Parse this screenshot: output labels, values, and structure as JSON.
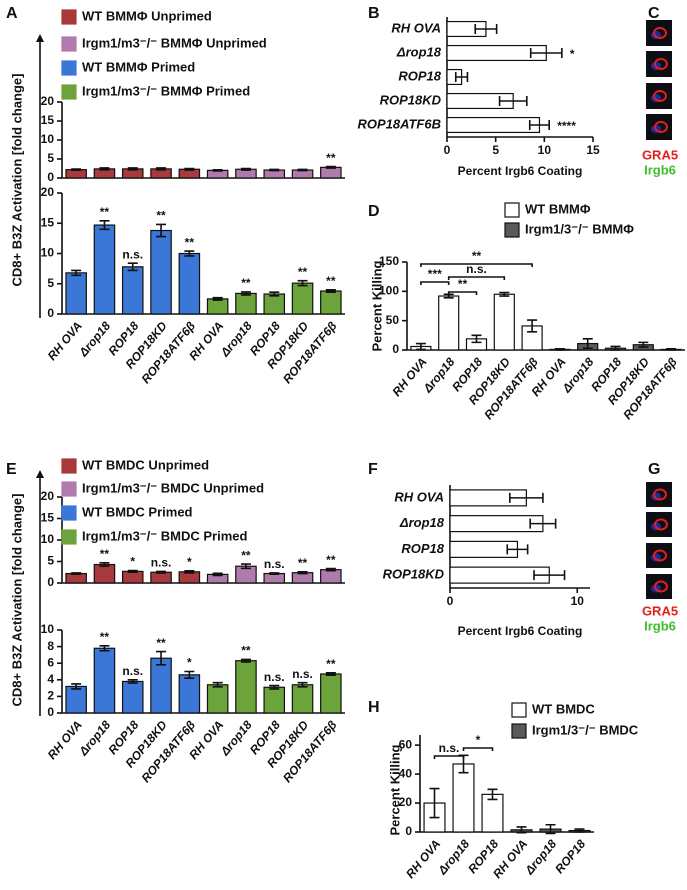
{
  "chart_data": [
    {
      "type": "bar",
      "panel": "A",
      "ylabel": "CD8+ B3Z Activation [fold change]",
      "categories": [
        "RH OVA",
        "Δrop18",
        "ROP18",
        "ROP18KD",
        "ROP18ATF6β",
        "RH OVA",
        "Δrop18",
        "ROP18",
        "ROP18KD",
        "ROP18ATF6β"
      ],
      "subplots": [
        {
          "ylim": [
            0,
            20
          ],
          "yticks": [
            0,
            5,
            10,
            15,
            20
          ],
          "series": [
            {
              "name": "WT BMMΦ Unprimed",
              "color": "#a8393c",
              "values": [
                2.2,
                2.4,
                2.4,
                2.4,
                2.3,
                null,
                null,
                null,
                null,
                null
              ],
              "errors": [
                0.15,
                0.25,
                0.25,
                0.25,
                0.2,
                null,
                null,
                null,
                null,
                null
              ],
              "annotations": [
                null,
                null,
                null,
                null,
                null,
                null,
                null,
                null,
                null,
                null
              ]
            },
            {
              "name": "Irgm1/m3⁻/⁻ BMMΦ  Unprimed",
              "color": "#b07aad",
              "values": [
                null,
                null,
                null,
                null,
                null,
                2.0,
                2.3,
                2.1,
                2.1,
                2.8
              ],
              "errors": [
                null,
                null,
                null,
                null,
                null,
                0.15,
                0.2,
                0.15,
                0.15,
                0.2
              ],
              "annotations": [
                null,
                null,
                null,
                null,
                null,
                null,
                null,
                null,
                null,
                "**"
              ]
            }
          ]
        },
        {
          "ylim": [
            0,
            20
          ],
          "yticks": [
            0,
            5,
            10,
            15,
            20
          ],
          "series": [
            {
              "name": "WT BMMΦ Primed",
              "color": "#3a77d6",
              "values": [
                6.8,
                14.7,
                7.8,
                13.8,
                10.0,
                null,
                null,
                null,
                null,
                null
              ],
              "errors": [
                0.4,
                0.7,
                0.6,
                1.0,
                0.4,
                null,
                null,
                null,
                null,
                null
              ],
              "annotations": [
                null,
                "**",
                "n.s.",
                "**",
                "**",
                null,
                null,
                null,
                null,
                null
              ]
            },
            {
              "name": "Irgm1/m3⁻/⁻ BMMΦ  Primed",
              "color": "#6ca33b",
              "values": [
                null,
                null,
                null,
                null,
                null,
                2.5,
                3.4,
                3.3,
                5.1,
                3.8
              ],
              "errors": [
                null,
                null,
                null,
                null,
                null,
                0.2,
                0.25,
                0.3,
                0.4,
                0.2
              ],
              "annotations": [
                null,
                null,
                null,
                null,
                null,
                null,
                "**",
                null,
                "**",
                "**"
              ]
            }
          ]
        }
      ]
    },
    {
      "type": "barh",
      "panel": "B",
      "xlabel": "Percent Irgb6 Coating",
      "color": "#ffffff",
      "categories": [
        "RH OVA",
        "Δrop18",
        "ROP18",
        "ROP18KD",
        "ROP18ATF6B"
      ],
      "values": [
        4,
        10.2,
        1.5,
        6.8,
        9.5
      ],
      "errors": [
        1.1,
        1.6,
        0.6,
        1.4,
        1.0
      ],
      "annotations": [
        null,
        "*",
        null,
        null,
        "****"
      ],
      "xlim": [
        0,
        15
      ],
      "xticks": [
        0,
        5,
        10,
        15
      ]
    },
    {
      "type": "bar",
      "panel": "D",
      "ylabel": "Percent Killing",
      "categories": [
        "RH OVA",
        "Δrop18",
        "ROP18",
        "ROP18KD",
        "ROP18ATF6β",
        "RH OVA",
        "Δrop18",
        "ROP18",
        "ROP18KD",
        "ROP18ATF6β"
      ],
      "ylim": [
        0,
        150
      ],
      "yticks": [
        0,
        50,
        100,
        150
      ],
      "series": [
        {
          "name": "WT BMMΦ",
          "color": "#ffffff",
          "values": [
            6,
            92,
            19,
            95,
            41,
            null,
            null,
            null,
            null,
            null
          ],
          "errors": [
            5,
            3,
            6,
            3,
            10,
            null,
            null,
            null,
            null,
            null
          ]
        },
        {
          "name": "Irgm1/3⁻/⁻ BMMΦ",
          "color": "#5a5a5a",
          "values": [
            null,
            null,
            null,
            null,
            null,
            1,
            11,
            3,
            9,
            1
          ],
          "errors": [
            null,
            null,
            null,
            null,
            null,
            1,
            8,
            3,
            4,
            1
          ]
        }
      ],
      "significance": [
        "**",
        "n.s.",
        "**",
        "***"
      ]
    },
    {
      "type": "bar",
      "panel": "E",
      "ylabel": "CD8+ B3Z Activation [fold change]",
      "categories": [
        "RH OVA",
        "Δrop18",
        "ROP18",
        "ROP18KD",
        "ROP18ATF6β",
        "RH OVA",
        "Δrop18",
        "ROP18",
        "ROP18KD",
        "ROP18ATF6β"
      ],
      "subplots": [
        {
          "ylim": [
            0,
            20
          ],
          "yticks": [
            0,
            5,
            10,
            15,
            20
          ],
          "series": [
            {
              "name": "WT BMDC Unprimed",
              "color": "#a8393c",
              "values": [
                2.2,
                4.3,
                2.7,
                2.5,
                2.6,
                null,
                null,
                null,
                null,
                null
              ],
              "errors": [
                0.15,
                0.4,
                0.2,
                0.2,
                0.25,
                null,
                null,
                null,
                null,
                null
              ],
              "annotations": [
                null,
                "**",
                "*",
                "n.s.",
                "*",
                null,
                null,
                null,
                null,
                null
              ]
            },
            {
              "name": "Irgm1/m3⁻/⁻ BMDC  Unprimed",
              "color": "#b07aad",
              "values": [
                null,
                null,
                null,
                null,
                null,
                2.0,
                3.9,
                2.2,
                2.4,
                3.1
              ],
              "errors": [
                null,
                null,
                null,
                null,
                null,
                0.25,
                0.5,
                0.15,
                0.2,
                0.25
              ],
              "annotations": [
                null,
                null,
                null,
                null,
                null,
                null,
                "**",
                "n.s.",
                "**",
                "**"
              ]
            }
          ]
        },
        {
          "ylim": [
            0,
            10
          ],
          "yticks": [
            0,
            2,
            4,
            6,
            8,
            10
          ],
          "series": [
            {
              "name": "WT BMDC Primed",
              "color": "#3a77d6",
              "values": [
                3.2,
                7.8,
                3.8,
                6.6,
                4.6,
                null,
                null,
                null,
                null,
                null
              ],
              "errors": [
                0.3,
                0.3,
                0.2,
                0.8,
                0.4,
                null,
                null,
                null,
                null,
                null
              ],
              "annotations": [
                null,
                "**",
                "n.s.",
                "**",
                "*",
                null,
                null,
                null,
                null,
                null
              ]
            },
            {
              "name": "Irgm1/m3⁻/⁻ BMDC  Primed",
              "color": "#6ca33b",
              "values": [
                null,
                null,
                null,
                null,
                null,
                3.4,
                6.3,
                3.1,
                3.4,
                4.7
              ],
              "errors": [
                null,
                null,
                null,
                null,
                null,
                0.25,
                0.15,
                0.2,
                0.25,
                0.15
              ],
              "annotations": [
                null,
                null,
                null,
                null,
                null,
                null,
                "**",
                "n.s.",
                "n.s.",
                "**"
              ]
            }
          ]
        }
      ]
    },
    {
      "type": "barh",
      "panel": "F",
      "xlabel": "Percent Irgb6 Coating",
      "color": "#ffffff",
      "categories": [
        "RH OVA",
        "Δrop18",
        "ROP18",
        "ROP18KD"
      ],
      "values": [
        6,
        7.3,
        5.3,
        7.8
      ],
      "errors": [
        1.3,
        1.0,
        0.8,
        1.2
      ],
      "annotations": [
        null,
        null,
        null,
        null
      ],
      "xlim": [
        0,
        11
      ],
      "xticks": [
        0,
        10
      ]
    },
    {
      "type": "bar",
      "panel": "H",
      "ylabel": "Percent Killing",
      "categories": [
        "RH OVA",
        "Δrop18",
        "ROP18",
        "RH OVA",
        "Δrop18",
        "ROP18"
      ],
      "ylim": [
        0,
        67
      ],
      "yticks": [
        0,
        20,
        40,
        60
      ],
      "series": [
        {
          "name": "WT BMDC",
          "color": "#ffffff",
          "values": [
            20,
            47,
            26,
            null,
            null,
            null
          ],
          "errors": [
            10,
            6,
            3.5,
            null,
            null,
            null
          ]
        },
        {
          "name": "Irgm1/3⁻/⁻ BMDC",
          "color": "#5a5a5a",
          "values": [
            null,
            null,
            null,
            1.5,
            2,
            1
          ],
          "errors": [
            null,
            null,
            null,
            2,
            3,
            1
          ]
        }
      ],
      "significance": [
        "n.s.",
        "*"
      ]
    }
  ],
  "image_panels": [
    {
      "panel": "C",
      "labels": [
        "GRA5",
        "Irgb6"
      ]
    },
    {
      "panel": "G",
      "labels": [
        "GRA5",
        "Irgb6"
      ]
    }
  ]
}
